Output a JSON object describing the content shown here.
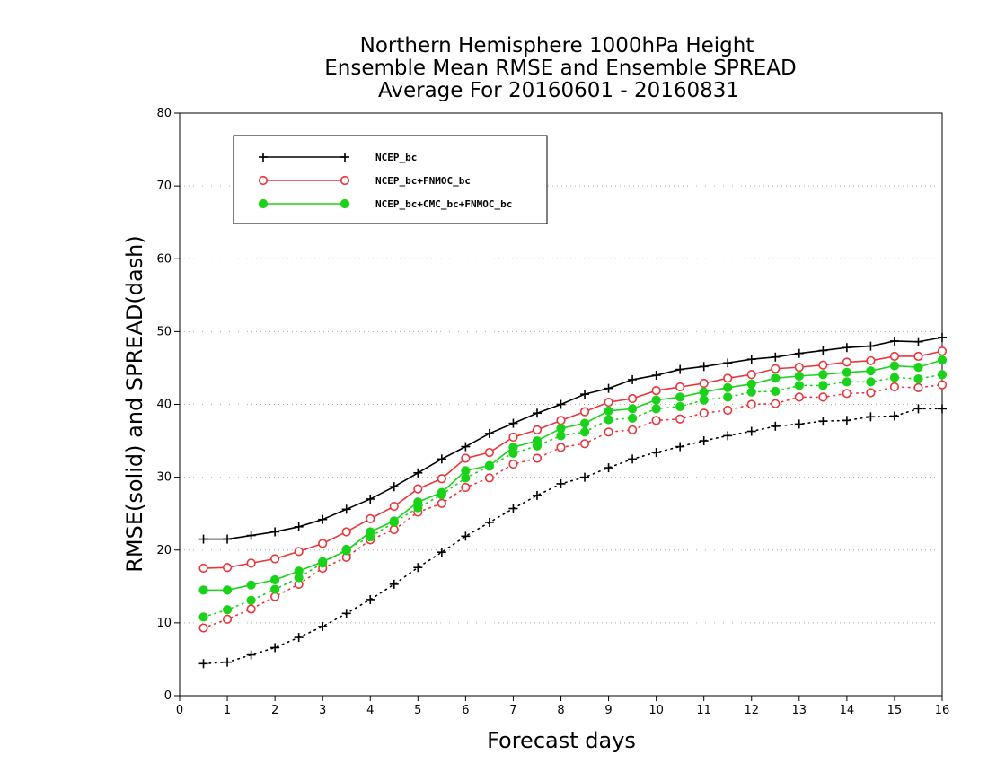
{
  "chart_data": {
    "type": "line",
    "title_lines": [
      "Northern Hemisphere 1000hPa Height",
      "Ensemble Mean RMSE and Ensemble SPREAD",
      "Average For 20160601 - 20160831"
    ],
    "xlabel": "Forecast days",
    "ylabel": "RMSE(solid) and SPREAD(dash)",
    "xlim": [
      0,
      16
    ],
    "ylim": [
      0,
      80
    ],
    "x_ticks": [
      "0",
      "1",
      "2",
      "3",
      "4",
      "5",
      "6",
      "7",
      "8",
      "9",
      "10",
      "11",
      "12",
      "13",
      "14",
      "15",
      "16"
    ],
    "y_ticks": [
      "0",
      "10",
      "20",
      "30",
      "40",
      "50",
      "60",
      "70",
      "80"
    ],
    "grid": "horizontal dotted",
    "legend_position": "top-left",
    "x": [
      0.5,
      1,
      1.5,
      2,
      2.5,
      3,
      3.5,
      4,
      4.5,
      5,
      5.5,
      6,
      6.5,
      7,
      7.5,
      8,
      8.5,
      9,
      9.5,
      10,
      10.5,
      11,
      11.5,
      12,
      12.5,
      13,
      13.5,
      14,
      14.5,
      15,
      15.5,
      16
    ],
    "series": [
      {
        "name": "NCEP_bc",
        "color": "#000000",
        "marker": "plus",
        "rmse": [
          21.5,
          21.5,
          22.0,
          22.5,
          23.2,
          24.2,
          25.6,
          27.0,
          28.7,
          30.6,
          32.5,
          34.2,
          36.0,
          37.4,
          38.8,
          40.0,
          41.4,
          42.2,
          43.4,
          44.0,
          44.8,
          45.2,
          45.7,
          46.2,
          46.5,
          47.0,
          47.4,
          47.8,
          48.0,
          48.7,
          48.6,
          49.2
        ],
        "spread": [
          4.4,
          4.6,
          5.6,
          6.6,
          8.0,
          9.5,
          11.3,
          13.2,
          15.3,
          17.6,
          19.7,
          21.9,
          23.8,
          25.7,
          27.5,
          29.1,
          30.0,
          31.3,
          32.5,
          33.4,
          34.2,
          35.0,
          35.7,
          36.3,
          37.0,
          37.3,
          37.7,
          37.8,
          38.3,
          38.4,
          39.4,
          39.4
        ]
      },
      {
        "name": "NCEP_bc+FNMOC_bc",
        "color": "#e8363c",
        "marker": "open-circle",
        "rmse": [
          17.5,
          17.6,
          18.2,
          18.8,
          19.8,
          20.9,
          22.5,
          24.3,
          26.0,
          28.4,
          29.8,
          32.6,
          33.4,
          35.5,
          36.5,
          37.8,
          39.0,
          40.3,
          40.8,
          41.9,
          42.4,
          42.9,
          43.6,
          44.1,
          44.9,
          45.1,
          45.4,
          45.8,
          46.0,
          46.6,
          46.6,
          47.3
        ],
        "spread": [
          9.3,
          10.5,
          11.9,
          13.6,
          15.3,
          17.5,
          19.0,
          21.4,
          22.8,
          25.2,
          26.4,
          28.6,
          29.9,
          31.8,
          32.6,
          34.1,
          34.6,
          36.2,
          36.5,
          37.8,
          38.0,
          38.8,
          39.2,
          40.0,
          40.1,
          41.0,
          41.0,
          41.5,
          41.6,
          42.4,
          42.3,
          42.7
        ]
      },
      {
        "name": "NCEP_bc+CMC_bc+FNMOC_bc",
        "color": "#1ad21a",
        "marker": "filled-circle",
        "rmse": [
          14.5,
          14.5,
          15.2,
          15.9,
          17.1,
          18.4,
          19.9,
          22.5,
          24.0,
          26.6,
          27.9,
          30.9,
          31.6,
          34.1,
          35.0,
          36.7,
          37.4,
          39.1,
          39.4,
          40.6,
          41.0,
          41.7,
          42.3,
          42.8,
          43.6,
          43.9,
          44.1,
          44.4,
          44.6,
          45.3,
          45.1,
          46.1
        ],
        "spread": [
          10.8,
          11.8,
          13.1,
          14.6,
          16.2,
          18.2,
          20.1,
          21.8,
          23.8,
          25.8,
          27.6,
          29.9,
          31.5,
          33.3,
          34.3,
          35.7,
          36.2,
          37.9,
          38.1,
          39.4,
          39.7,
          40.6,
          41.0,
          41.7,
          41.8,
          42.6,
          42.6,
          43.1,
          43.1,
          43.7,
          43.5,
          44.1
        ]
      }
    ]
  }
}
